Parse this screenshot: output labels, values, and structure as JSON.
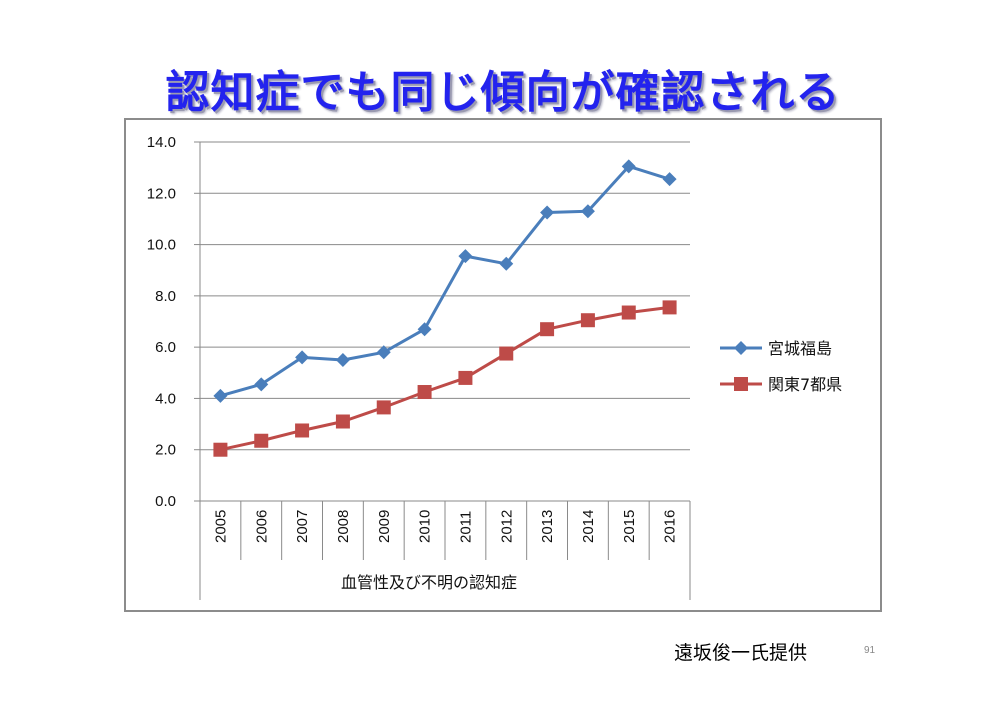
{
  "slide": {
    "title": "認知症でも同じ傾向が確認される",
    "credit": "遠坂俊一氏提供",
    "page_number": "91"
  },
  "chart_data": {
    "type": "line",
    "title": "",
    "xlabel": "血管性及び不明の認知症",
    "ylabel": "",
    "categories": [
      "2005",
      "2006",
      "2007",
      "2008",
      "2009",
      "2010",
      "2011",
      "2012",
      "2013",
      "2014",
      "2015",
      "2016"
    ],
    "ylim": [
      0,
      14
    ],
    "yticks": [
      "0.0",
      "2.0",
      "4.0",
      "6.0",
      "8.0",
      "10.0",
      "12.0",
      "14.0"
    ],
    "grid": true,
    "legend_position": "right",
    "series": [
      {
        "name": "宮城福島",
        "marker": "diamond",
        "color": "#4a7ebb",
        "values": [
          4.1,
          4.55,
          5.6,
          5.5,
          5.8,
          6.7,
          9.55,
          9.25,
          11.25,
          11.3,
          13.05,
          12.55
        ]
      },
      {
        "name": "関東7都県",
        "marker": "square",
        "color": "#be4b48",
        "values": [
          2.0,
          2.35,
          2.75,
          3.1,
          3.65,
          4.25,
          4.8,
          5.75,
          6.7,
          7.05,
          7.35,
          7.55
        ]
      }
    ]
  }
}
